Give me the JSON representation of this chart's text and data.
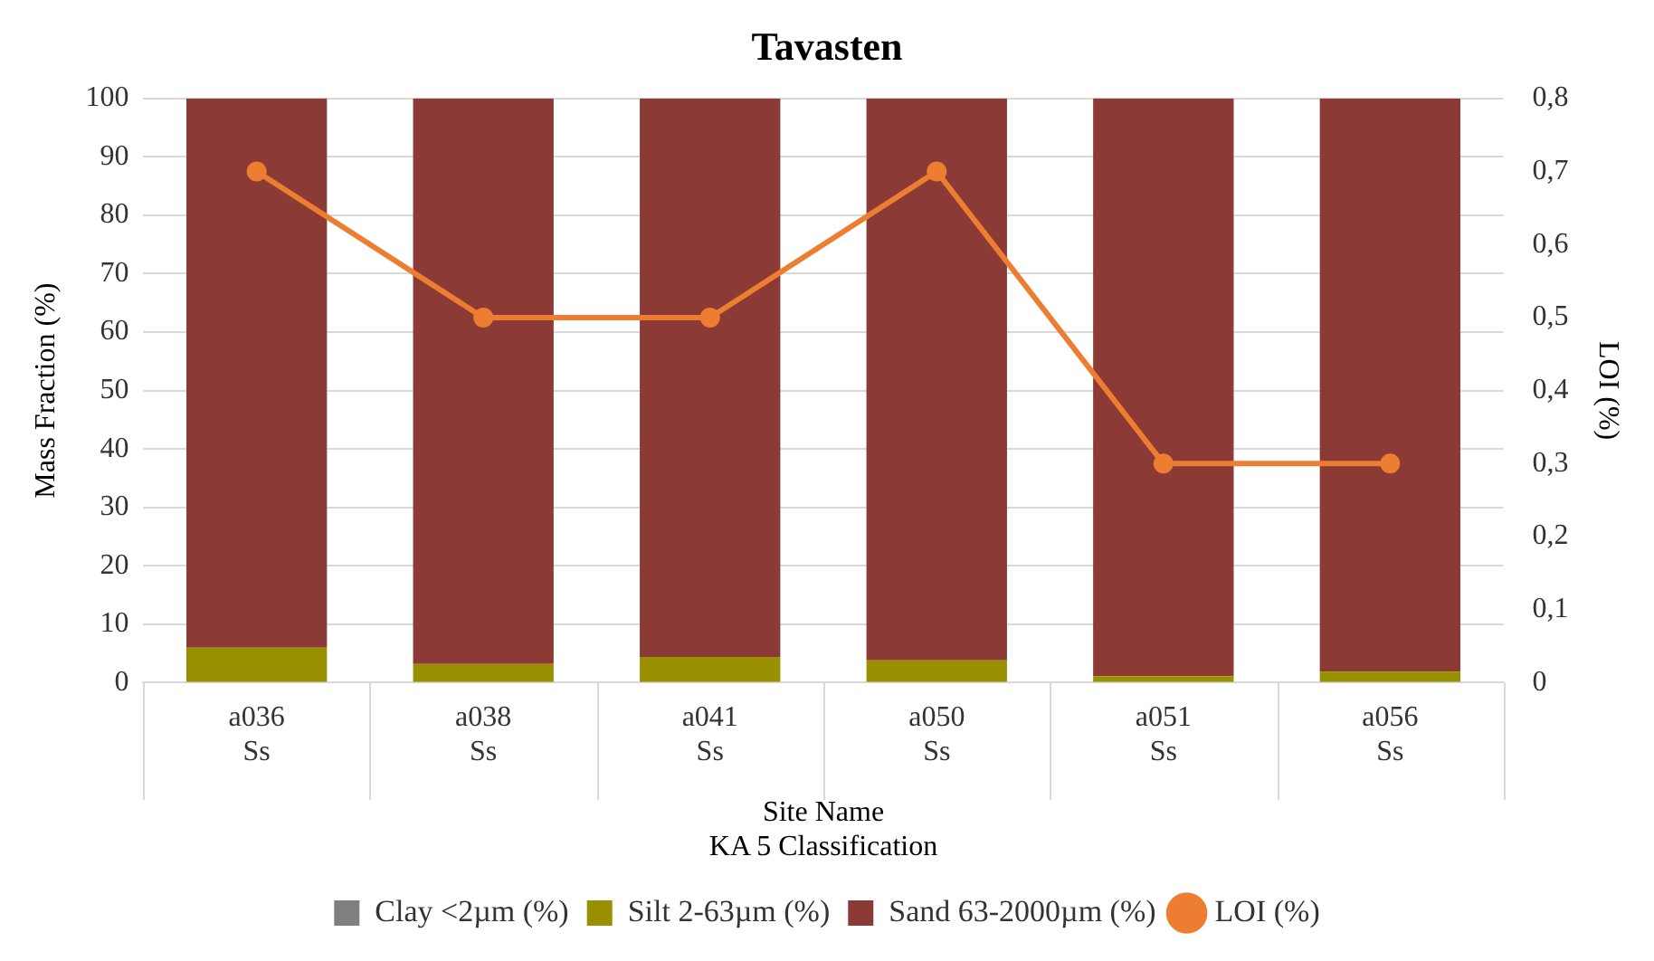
{
  "chart_data": {
    "type": "bar",
    "title": "Tavasten",
    "xlabel": "Site Name\nKA 5 Classification",
    "ylabel": "Mass Fraction (%)",
    "y2label": "LOI (%)",
    "categories": [
      "a036\nSs",
      "a038\nSs",
      "a041\nSs",
      "a050\nSs",
      "a051\nSs",
      "a056\nSs"
    ],
    "stacked": true,
    "series": [
      {
        "name": "Clay <2µm (%)",
        "color": "#7f7f7f",
        "values": [
          0,
          0,
          0,
          0,
          0,
          0
        ]
      },
      {
        "name": "Silt 2-63µm (%)",
        "color": "#999000",
        "values": [
          6.0,
          3.2,
          4.4,
          3.8,
          1.1,
          1.9
        ]
      },
      {
        "name": "Sand 63-2000µm (%)",
        "color": "#8b3a36",
        "values": [
          94.0,
          96.8,
          95.6,
          96.2,
          98.9,
          98.1
        ]
      },
      {
        "name": "LOI (%)",
        "type": "line",
        "axis": "y2",
        "color": "#ed7d31",
        "marker": "circle",
        "values": [
          0.7,
          0.5,
          0.5,
          0.7,
          0.3,
          0.3
        ]
      }
    ],
    "ylim": [
      0,
      100
    ],
    "yticks": [
      0,
      10,
      20,
      30,
      40,
      50,
      60,
      70,
      80,
      90,
      100
    ],
    "y2lim": [
      0,
      0.8
    ],
    "y2ticks": [
      0,
      {
        "value": 0.1,
        "label": "0,1"
      },
      {
        "value": 0.2,
        "label": "0,2"
      },
      {
        "value": 0.3,
        "label": "0,3"
      },
      {
        "value": 0.4,
        "label": "0,4"
      },
      {
        "value": 0.5,
        "label": "0,5"
      },
      {
        "value": 0.6,
        "label": "0,6"
      },
      {
        "value": 0.7,
        "label": "0,7"
      },
      {
        "value": 0.8,
        "label": "0,8"
      }
    ],
    "grid": "y",
    "legend": "bottom"
  }
}
